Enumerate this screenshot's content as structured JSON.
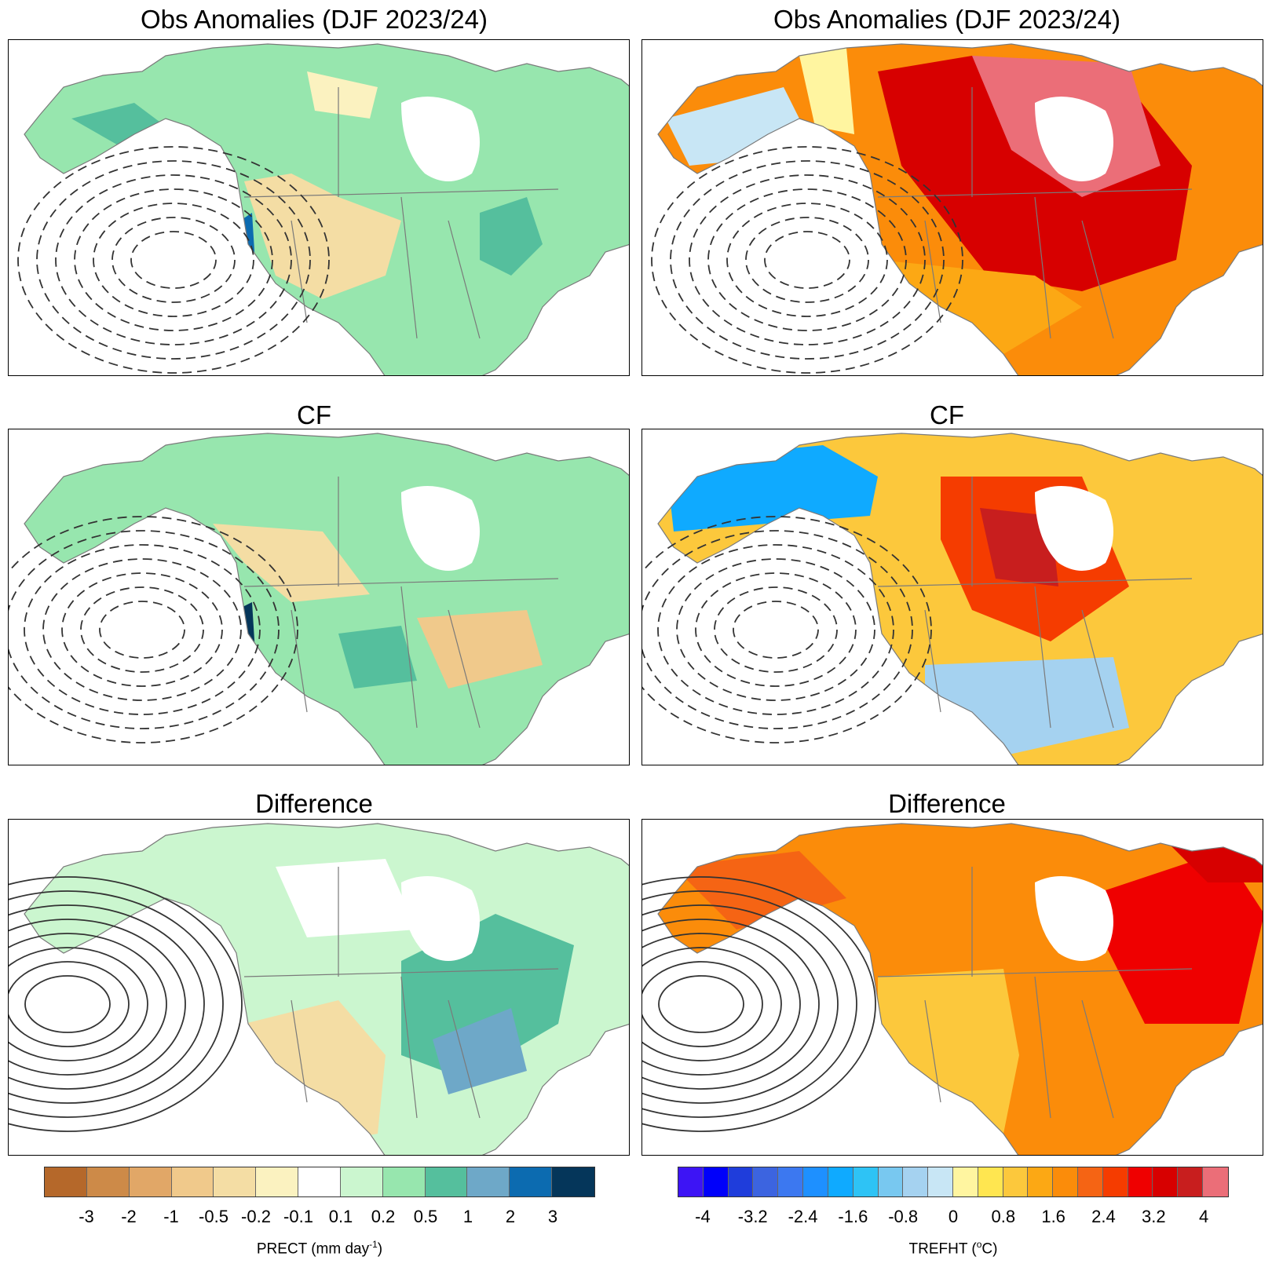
{
  "panels": {
    "left": {
      "row1_title": "Obs Anomalies (DJF 2023/24)",
      "row2_title": "CF",
      "row3_title": "Difference"
    },
    "right": {
      "row1_title": "Obs Anomalies (DJF 2023/24)",
      "row2_title": "CF",
      "row3_title": "Difference"
    }
  },
  "colorbars": {
    "precip": {
      "variable": "PRECT",
      "units_base": "(mm day",
      "units_exp": "-1",
      "units_close": ")",
      "ticks": [
        "-3",
        "-2",
        "-1",
        "-0.5",
        "-0.2",
        "-0.1",
        "0.1",
        "0.2",
        "0.5",
        "1",
        "2",
        "3"
      ],
      "colors": [
        "#b5682a",
        "#cd8a48",
        "#e1a767",
        "#f0c98b",
        "#f4dda4",
        "#fbf2c0",
        "#ffffff",
        "#cbf6cf",
        "#97e6ae",
        "#55bf9d",
        "#6ea8c8",
        "#0c6bb0",
        "#05365a"
      ]
    },
    "temp": {
      "variable": "TREFHT",
      "units_base": "(",
      "units_exp": "o",
      "units_close": "C)",
      "ticks": [
        "-4",
        "-3.2",
        "-2.4",
        "-1.6",
        "-0.8",
        "0",
        "0.8",
        "1.6",
        "2.4",
        "3.2",
        "4"
      ],
      "tick_positions_note": "",
      "colors": [
        "#3d14f5",
        "#0000fa",
        "#1f3ddb",
        "#3c64e0",
        "#3c78f0",
        "#1e90ff",
        "#0faaff",
        "#2ec3f5",
        "#78c8f0",
        "#a5d2f0",
        "#c8e6f5",
        "#fff5a0",
        "#ffe650",
        "#fcc83c",
        "#fca814",
        "#fb8c0a",
        "#f56414",
        "#f53c00",
        "#ef0000",
        "#d70000",
        "#c81e1e",
        "#eb6e78"
      ]
    }
  },
  "map_styles": {
    "ocean": "#ffffff",
    "contour_color": "#333333",
    "border_color": "#7a7a7a"
  }
}
